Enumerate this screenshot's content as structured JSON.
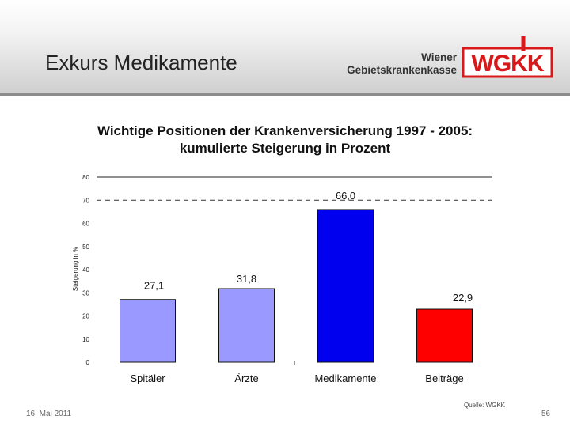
{
  "slide": {
    "title": "Exkurs Medikamente",
    "date": "16. Mai 2011",
    "page_number": "56",
    "source": "Quelle: WGKK"
  },
  "organization": {
    "name_line1": "Wiener",
    "name_line2": "Gebietskrankenkasse",
    "logo_text": "WGKK",
    "brand_color": "#d7191c"
  },
  "chart_data": {
    "type": "bar",
    "title_line1": "Wichtige Positionen der Krankenversicherung 1997 - 2005:",
    "title_line2": "kumulierte Steigerung in Prozent",
    "ylabel": "Steigerung in %",
    "xlabel": "",
    "ylim": [
      0,
      80
    ],
    "yticks": [
      0,
      10,
      20,
      30,
      40,
      50,
      60,
      70,
      80
    ],
    "ytick_labels": [
      "0",
      "10",
      "20",
      "30",
      "40",
      "50",
      "60",
      "70",
      "80"
    ],
    "categories": [
      "Spitäler",
      "Ärzte",
      "Medikamente",
      "Beiträge"
    ],
    "values": [
      27.1,
      31.8,
      66.0,
      22.9
    ],
    "value_labels": [
      "27,1",
      "31,8",
      "66,0",
      "22,9"
    ],
    "colors": [
      "#9999ff",
      "#9999ff",
      "#0000ee",
      "#ff0000"
    ],
    "reference_line": {
      "value": 70,
      "style": "dashed"
    },
    "grid": false
  }
}
